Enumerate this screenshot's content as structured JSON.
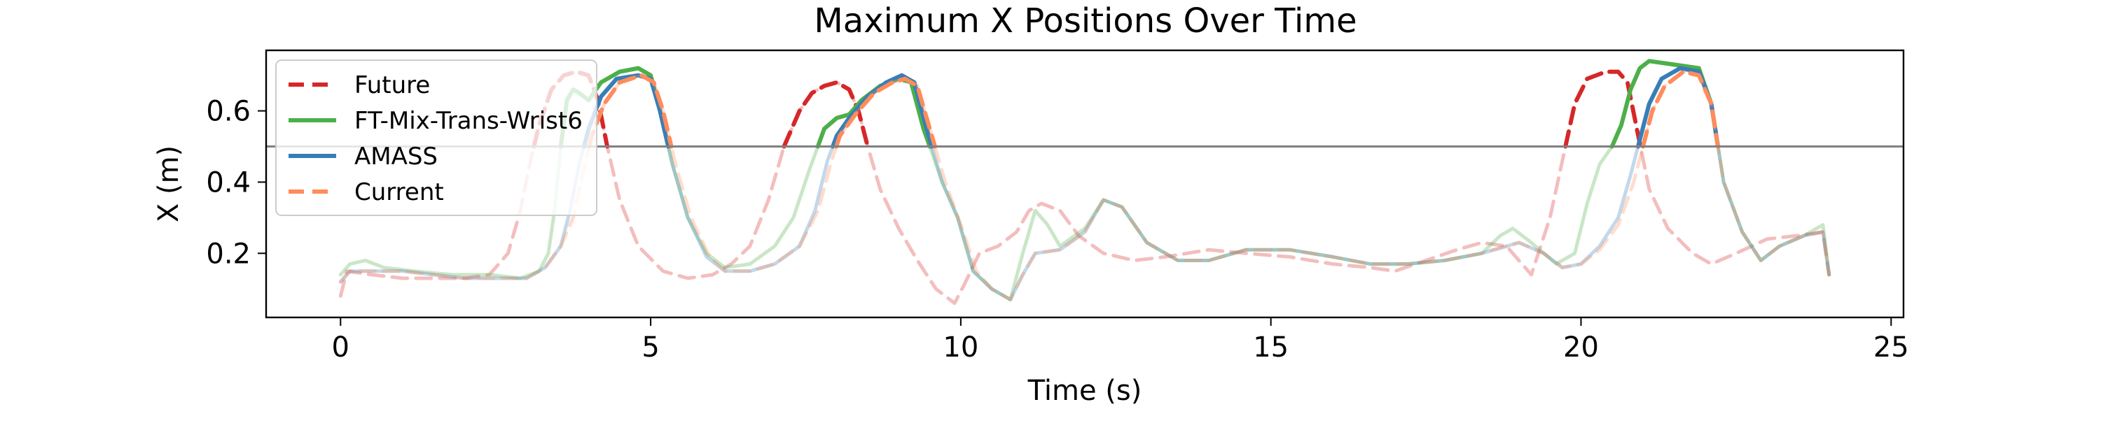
{
  "chart_data": {
    "type": "line",
    "title": "Maximum X Positions Over Time",
    "xlabel": "Time (s)",
    "ylabel": "X (m)",
    "xlim": [
      -1.2,
      25.2
    ],
    "ylim": [
      0.02,
      0.77
    ],
    "xticks": [
      "0",
      "5",
      "10",
      "15",
      "20",
      "25"
    ],
    "yticks": [
      "0.2",
      "0.4",
      "0.6"
    ],
    "threshold": 0.5,
    "colors": {
      "future": "#d62728",
      "ft": "#4daf4a",
      "amass": "#377eb8",
      "current": "#ff8c5a",
      "threshold": "#808080"
    },
    "legend": {
      "placement": "top-left",
      "entries": [
        "Future",
        "FT-Mix-Trans-Wrist6",
        "AMASS",
        "Current"
      ]
    },
    "series": [
      {
        "name": "Future",
        "style": "dashed",
        "values": [
          [
            0.0,
            0.08
          ],
          [
            0.1,
            0.15
          ],
          [
            0.5,
            0.14
          ],
          [
            1,
            0.13
          ],
          [
            1.5,
            0.13
          ],
          [
            2,
            0.13
          ],
          [
            2.4,
            0.14
          ],
          [
            2.7,
            0.2
          ],
          [
            2.9,
            0.32
          ],
          [
            3.05,
            0.45
          ],
          [
            3.2,
            0.56
          ],
          [
            3.4,
            0.66
          ],
          [
            3.6,
            0.7
          ],
          [
            3.8,
            0.71
          ],
          [
            4.0,
            0.7
          ],
          [
            4.15,
            0.63
          ],
          [
            4.3,
            0.5
          ],
          [
            4.5,
            0.35
          ],
          [
            4.8,
            0.22
          ],
          [
            5.2,
            0.15
          ],
          [
            5.6,
            0.13
          ],
          [
            6.0,
            0.14
          ],
          [
            6.3,
            0.17
          ],
          [
            6.6,
            0.22
          ],
          [
            6.9,
            0.35
          ],
          [
            7.15,
            0.5
          ],
          [
            7.4,
            0.6
          ],
          [
            7.6,
            0.65
          ],
          [
            7.8,
            0.67
          ],
          [
            8.0,
            0.68
          ],
          [
            8.2,
            0.66
          ],
          [
            8.35,
            0.6
          ],
          [
            8.5,
            0.5
          ],
          [
            8.7,
            0.38
          ],
          [
            9.0,
            0.27
          ],
          [
            9.3,
            0.18
          ],
          [
            9.6,
            0.1
          ],
          [
            9.9,
            0.06
          ],
          [
            10.05,
            0.11
          ],
          [
            10.3,
            0.2
          ],
          [
            10.6,
            0.22
          ],
          [
            10.9,
            0.26
          ],
          [
            11.1,
            0.32
          ],
          [
            11.3,
            0.34
          ],
          [
            11.6,
            0.32
          ],
          [
            11.9,
            0.25
          ],
          [
            12.3,
            0.2
          ],
          [
            12.8,
            0.18
          ],
          [
            13.3,
            0.19
          ],
          [
            14,
            0.21
          ],
          [
            14.6,
            0.2
          ],
          [
            15.3,
            0.19
          ],
          [
            16,
            0.17
          ],
          [
            16.6,
            0.16
          ],
          [
            17,
            0.15
          ],
          [
            17.5,
            0.18
          ],
          [
            18,
            0.21
          ],
          [
            18.4,
            0.23
          ],
          [
            18.8,
            0.22
          ],
          [
            19.2,
            0.14
          ],
          [
            19.5,
            0.3
          ],
          [
            19.75,
            0.5
          ],
          [
            19.9,
            0.62
          ],
          [
            20.1,
            0.69
          ],
          [
            20.4,
            0.71
          ],
          [
            20.6,
            0.71
          ],
          [
            20.75,
            0.68
          ],
          [
            20.9,
            0.55
          ],
          [
            21.1,
            0.38
          ],
          [
            21.4,
            0.27
          ],
          [
            21.8,
            0.2
          ],
          [
            22.1,
            0.17
          ],
          [
            22.5,
            0.2
          ],
          [
            23,
            0.24
          ],
          [
            23.5,
            0.25
          ],
          [
            23.9,
            0.26
          ],
          [
            24.0,
            0.14
          ]
        ]
      },
      {
        "name": "FT-Mix-Trans-Wrist6",
        "style": "solid",
        "values": [
          [
            0.0,
            0.14
          ],
          [
            0.15,
            0.17
          ],
          [
            0.4,
            0.18
          ],
          [
            0.7,
            0.16
          ],
          [
            1.2,
            0.15
          ],
          [
            1.8,
            0.14
          ],
          [
            2.4,
            0.14
          ],
          [
            2.9,
            0.13
          ],
          [
            3.2,
            0.15
          ],
          [
            3.35,
            0.2
          ],
          [
            3.45,
            0.32
          ],
          [
            3.55,
            0.5
          ],
          [
            3.65,
            0.63
          ],
          [
            3.75,
            0.66
          ],
          [
            3.85,
            0.65
          ],
          [
            4.0,
            0.63
          ],
          [
            4.2,
            0.68
          ],
          [
            4.5,
            0.71
          ],
          [
            4.8,
            0.72
          ],
          [
            5.0,
            0.7
          ],
          [
            5.15,
            0.6
          ],
          [
            5.35,
            0.45
          ],
          [
            5.6,
            0.3
          ],
          [
            5.9,
            0.2
          ],
          [
            6.2,
            0.16
          ],
          [
            6.6,
            0.17
          ],
          [
            7.0,
            0.22
          ],
          [
            7.3,
            0.3
          ],
          [
            7.55,
            0.43
          ],
          [
            7.8,
            0.55
          ],
          [
            8.0,
            0.58
          ],
          [
            8.2,
            0.59
          ],
          [
            8.4,
            0.63
          ],
          [
            8.7,
            0.67
          ],
          [
            9.0,
            0.69
          ],
          [
            9.2,
            0.68
          ],
          [
            9.4,
            0.55
          ],
          [
            9.7,
            0.4
          ],
          [
            9.95,
            0.3
          ],
          [
            10.2,
            0.15
          ],
          [
            10.5,
            0.1
          ],
          [
            10.8,
            0.07
          ],
          [
            11.0,
            0.2
          ],
          [
            11.2,
            0.32
          ],
          [
            11.4,
            0.28
          ],
          [
            11.6,
            0.22
          ],
          [
            12.0,
            0.27
          ],
          [
            12.3,
            0.35
          ],
          [
            12.6,
            0.33
          ],
          [
            13.0,
            0.23
          ],
          [
            13.5,
            0.18
          ],
          [
            14,
            0.18
          ],
          [
            14.6,
            0.21
          ],
          [
            15.3,
            0.21
          ],
          [
            16,
            0.19
          ],
          [
            16.6,
            0.17
          ],
          [
            17.2,
            0.17
          ],
          [
            17.8,
            0.18
          ],
          [
            18.4,
            0.2
          ],
          [
            18.7,
            0.25
          ],
          [
            18.9,
            0.27
          ],
          [
            19.2,
            0.23
          ],
          [
            19.6,
            0.17
          ],
          [
            19.9,
            0.2
          ],
          [
            20.1,
            0.34
          ],
          [
            20.3,
            0.45
          ],
          [
            20.5,
            0.5
          ],
          [
            20.65,
            0.56
          ],
          [
            20.8,
            0.66
          ],
          [
            20.95,
            0.72
          ],
          [
            21.1,
            0.74
          ],
          [
            21.5,
            0.73
          ],
          [
            21.9,
            0.72
          ],
          [
            22.1,
            0.62
          ],
          [
            22.3,
            0.4
          ],
          [
            22.6,
            0.26
          ],
          [
            22.9,
            0.18
          ],
          [
            23.2,
            0.22
          ],
          [
            23.6,
            0.25
          ],
          [
            23.9,
            0.28
          ],
          [
            24.0,
            0.14
          ]
        ]
      },
      {
        "name": "AMASS",
        "style": "solid",
        "values": [
          [
            0.0,
            0.12
          ],
          [
            0.15,
            0.15
          ],
          [
            0.5,
            0.15
          ],
          [
            1,
            0.15
          ],
          [
            1.5,
            0.14
          ],
          [
            2,
            0.13
          ],
          [
            2.5,
            0.13
          ],
          [
            3.0,
            0.13
          ],
          [
            3.3,
            0.16
          ],
          [
            3.55,
            0.22
          ],
          [
            3.7,
            0.32
          ],
          [
            3.85,
            0.45
          ],
          [
            4.0,
            0.55
          ],
          [
            4.2,
            0.64
          ],
          [
            4.45,
            0.69
          ],
          [
            4.8,
            0.7
          ],
          [
            5.0,
            0.69
          ],
          [
            5.15,
            0.6
          ],
          [
            5.35,
            0.45
          ],
          [
            5.6,
            0.3
          ],
          [
            5.9,
            0.19
          ],
          [
            6.2,
            0.15
          ],
          [
            6.6,
            0.15
          ],
          [
            7.0,
            0.17
          ],
          [
            7.4,
            0.22
          ],
          [
            7.65,
            0.32
          ],
          [
            7.85,
            0.46
          ],
          [
            8.0,
            0.53
          ],
          [
            8.2,
            0.58
          ],
          [
            8.5,
            0.64
          ],
          [
            8.8,
            0.68
          ],
          [
            9.05,
            0.7
          ],
          [
            9.25,
            0.68
          ],
          [
            9.45,
            0.55
          ],
          [
            9.7,
            0.4
          ],
          [
            9.95,
            0.3
          ],
          [
            10.2,
            0.15
          ],
          [
            10.5,
            0.1
          ],
          [
            10.8,
            0.07
          ],
          [
            11.0,
            0.14
          ],
          [
            11.2,
            0.2
          ],
          [
            11.6,
            0.21
          ],
          [
            12.0,
            0.26
          ],
          [
            12.3,
            0.35
          ],
          [
            12.6,
            0.33
          ],
          [
            13.0,
            0.23
          ],
          [
            13.5,
            0.18
          ],
          [
            14,
            0.18
          ],
          [
            14.6,
            0.21
          ],
          [
            15.3,
            0.21
          ],
          [
            16,
            0.19
          ],
          [
            16.6,
            0.17
          ],
          [
            17.2,
            0.17
          ],
          [
            17.8,
            0.18
          ],
          [
            18.4,
            0.2
          ],
          [
            19.0,
            0.23
          ],
          [
            19.4,
            0.2
          ],
          [
            19.7,
            0.16
          ],
          [
            20.0,
            0.17
          ],
          [
            20.3,
            0.22
          ],
          [
            20.6,
            0.3
          ],
          [
            20.8,
            0.42
          ],
          [
            20.95,
            0.52
          ],
          [
            21.1,
            0.62
          ],
          [
            21.3,
            0.69
          ],
          [
            21.6,
            0.72
          ],
          [
            21.9,
            0.71
          ],
          [
            22.1,
            0.62
          ],
          [
            22.3,
            0.4
          ],
          [
            22.6,
            0.26
          ],
          [
            22.9,
            0.18
          ],
          [
            23.2,
            0.22
          ],
          [
            23.6,
            0.25
          ],
          [
            23.9,
            0.26
          ],
          [
            24.0,
            0.14
          ]
        ]
      },
      {
        "name": "Current",
        "style": "dashed",
        "values": [
          [
            0.0,
            0.12
          ],
          [
            0.15,
            0.15
          ],
          [
            0.5,
            0.15
          ],
          [
            1,
            0.15
          ],
          [
            1.5,
            0.14
          ],
          [
            2,
            0.13
          ],
          [
            2.5,
            0.13
          ],
          [
            3.0,
            0.13
          ],
          [
            3.3,
            0.16
          ],
          [
            3.55,
            0.22
          ],
          [
            3.75,
            0.3
          ],
          [
            3.9,
            0.42
          ],
          [
            4.05,
            0.53
          ],
          [
            4.25,
            0.62
          ],
          [
            4.5,
            0.68
          ],
          [
            4.85,
            0.7
          ],
          [
            5.05,
            0.68
          ],
          [
            5.2,
            0.6
          ],
          [
            5.4,
            0.45
          ],
          [
            5.65,
            0.3
          ],
          [
            5.95,
            0.19
          ],
          [
            6.2,
            0.15
          ],
          [
            6.6,
            0.15
          ],
          [
            7.0,
            0.17
          ],
          [
            7.4,
            0.22
          ],
          [
            7.7,
            0.32
          ],
          [
            7.9,
            0.45
          ],
          [
            8.05,
            0.53
          ],
          [
            8.3,
            0.59
          ],
          [
            8.6,
            0.65
          ],
          [
            8.9,
            0.68
          ],
          [
            9.1,
            0.69
          ],
          [
            9.3,
            0.67
          ],
          [
            9.5,
            0.55
          ],
          [
            9.75,
            0.4
          ],
          [
            10.0,
            0.28
          ],
          [
            10.25,
            0.15
          ],
          [
            10.5,
            0.1
          ],
          [
            10.8,
            0.07
          ],
          [
            11.0,
            0.14
          ],
          [
            11.2,
            0.2
          ],
          [
            11.6,
            0.21
          ],
          [
            12.0,
            0.26
          ],
          [
            12.3,
            0.35
          ],
          [
            12.6,
            0.33
          ],
          [
            13.0,
            0.23
          ],
          [
            13.5,
            0.18
          ],
          [
            14,
            0.18
          ],
          [
            14.6,
            0.21
          ],
          [
            15.3,
            0.21
          ],
          [
            16,
            0.19
          ],
          [
            16.6,
            0.17
          ],
          [
            17.2,
            0.17
          ],
          [
            17.8,
            0.18
          ],
          [
            18.4,
            0.2
          ],
          [
            19.0,
            0.23
          ],
          [
            19.4,
            0.2
          ],
          [
            19.7,
            0.16
          ],
          [
            20.0,
            0.17
          ],
          [
            20.3,
            0.21
          ],
          [
            20.6,
            0.28
          ],
          [
            20.85,
            0.4
          ],
          [
            21.0,
            0.5
          ],
          [
            21.15,
            0.6
          ],
          [
            21.35,
            0.67
          ],
          [
            21.65,
            0.71
          ],
          [
            21.9,
            0.7
          ],
          [
            22.1,
            0.62
          ],
          [
            22.3,
            0.4
          ],
          [
            22.6,
            0.26
          ],
          [
            22.9,
            0.18
          ],
          [
            23.2,
            0.22
          ],
          [
            23.6,
            0.25
          ],
          [
            23.9,
            0.26
          ],
          [
            24.0,
            0.14
          ]
        ]
      }
    ]
  }
}
